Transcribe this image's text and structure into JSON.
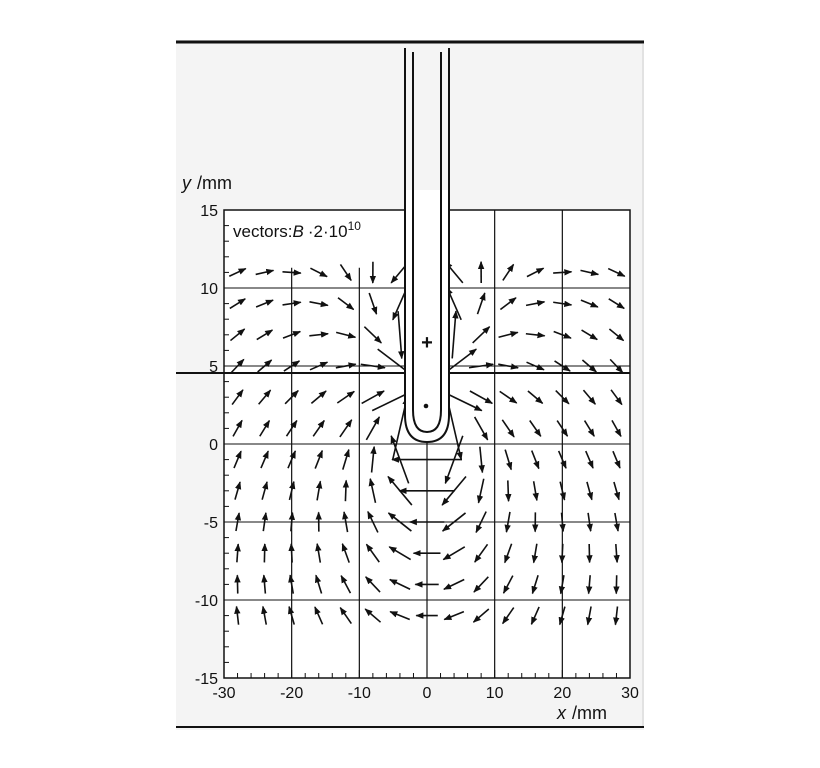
{
  "chart_data": {
    "type": "vector-field",
    "title": "",
    "legend_text": "vectors:",
    "legend_symbol": "B",
    "legend_scale": "·2·",
    "legend_base": "10",
    "legend_exponent": "10",
    "xlabel_var": "x",
    "xlabel_unit": "/mm",
    "ylabel_var": "y",
    "ylabel_unit": "/mm",
    "xlim": [
      -30,
      30
    ],
    "ylim": [
      -15,
      15
    ],
    "xticks": [
      -30,
      -20,
      -10,
      0,
      10,
      20,
      30
    ],
    "yticks": [
      15,
      10,
      5,
      0,
      -5,
      -10,
      -15
    ],
    "grid_x": [
      -20,
      -10,
      0,
      10,
      20
    ],
    "grid_y": [
      10,
      5,
      0,
      -5,
      -10
    ],
    "annotations": [
      {
        "type": "plus-charge",
        "label": "+",
        "x": 0,
        "y": 6.5
      },
      {
        "type": "dot",
        "label": "•",
        "x": 0,
        "y": 2.5
      }
    ],
    "probe": {
      "shape": "U-shaped electrode tip",
      "x_center": 0,
      "tip_y": 0,
      "outer_half_width_mm": 1.7,
      "inner_half_width_mm": 1.2
    },
    "vectors_note": "arrows show B-field direction scaled by 2e10; sampled on grid x in [-28..28] step 4, y in [-11..11] step 2"
  },
  "axes": {
    "x_label": "x /mm",
    "y_label": "y /mm"
  }
}
